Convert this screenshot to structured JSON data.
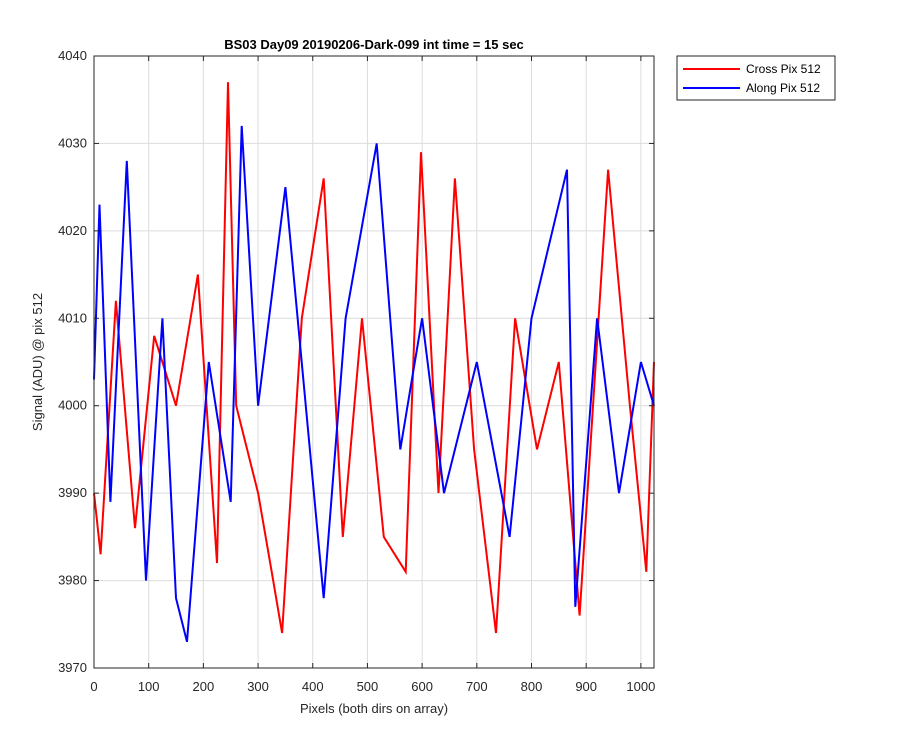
{
  "chart_data": {
    "type": "line",
    "title": "BS03 Day09 20190206-Dark-099 int time = 15 sec",
    "xlabel": "Pixels (both dirs on array)",
    "ylabel": "Signal (ADU) @ pix 512",
    "xlim": [
      0,
      1024
    ],
    "ylim": [
      3970,
      4040
    ],
    "xticks": [
      0,
      100,
      200,
      300,
      400,
      500,
      600,
      700,
      800,
      900,
      1000
    ],
    "yticks": [
      3970,
      3980,
      3990,
      4000,
      4010,
      4020,
      4030,
      4040
    ],
    "grid": true,
    "legend_position": "outside-top-right",
    "series": [
      {
        "name": "Cross Pix 512",
        "color": "#ff0000",
        "points": [
          [
            0,
            3990
          ],
          [
            12,
            3983
          ],
          [
            40,
            4012
          ],
          [
            75,
            3986
          ],
          [
            110,
            4008
          ],
          [
            150,
            4000
          ],
          [
            190,
            4015
          ],
          [
            225,
            3982
          ],
          [
            245,
            4037
          ],
          [
            260,
            4000
          ],
          [
            300,
            3990
          ],
          [
            325,
            3981
          ],
          [
            344,
            3974
          ],
          [
            380,
            4010
          ],
          [
            420,
            4026
          ],
          [
            455,
            3985
          ],
          [
            490,
            4010
          ],
          [
            530,
            3985
          ],
          [
            570,
            3981
          ],
          [
            598,
            4029
          ],
          [
            630,
            3990
          ],
          [
            660,
            4026
          ],
          [
            695,
            3995
          ],
          [
            735,
            3974
          ],
          [
            770,
            4010
          ],
          [
            810,
            3995
          ],
          [
            850,
            4005
          ],
          [
            888,
            3976
          ],
          [
            940,
            4027
          ],
          [
            980,
            4000
          ],
          [
            1010,
            3981
          ],
          [
            1024,
            4005
          ]
        ]
      },
      {
        "name": "Along Pix 512",
        "color": "#0000ff",
        "points": [
          [
            0,
            4003
          ],
          [
            10,
            4023
          ],
          [
            30,
            3989
          ],
          [
            60,
            4028
          ],
          [
            95,
            3980
          ],
          [
            125,
            4010
          ],
          [
            150,
            3978
          ],
          [
            170,
            3973
          ],
          [
            210,
            4005
          ],
          [
            250,
            3989
          ],
          [
            270,
            4032
          ],
          [
            300,
            4000
          ],
          [
            350,
            4025
          ],
          [
            420,
            3978
          ],
          [
            460,
            4010
          ],
          [
            517,
            4030
          ],
          [
            560,
            3995
          ],
          [
            600,
            4010
          ],
          [
            640,
            3990
          ],
          [
            700,
            4005
          ],
          [
            760,
            3985
          ],
          [
            800,
            4010
          ],
          [
            865,
            4027
          ],
          [
            880,
            3977
          ],
          [
            920,
            4010
          ],
          [
            960,
            3990
          ],
          [
            1000,
            4005
          ],
          [
            1024,
            4000
          ]
        ]
      }
    ]
  }
}
